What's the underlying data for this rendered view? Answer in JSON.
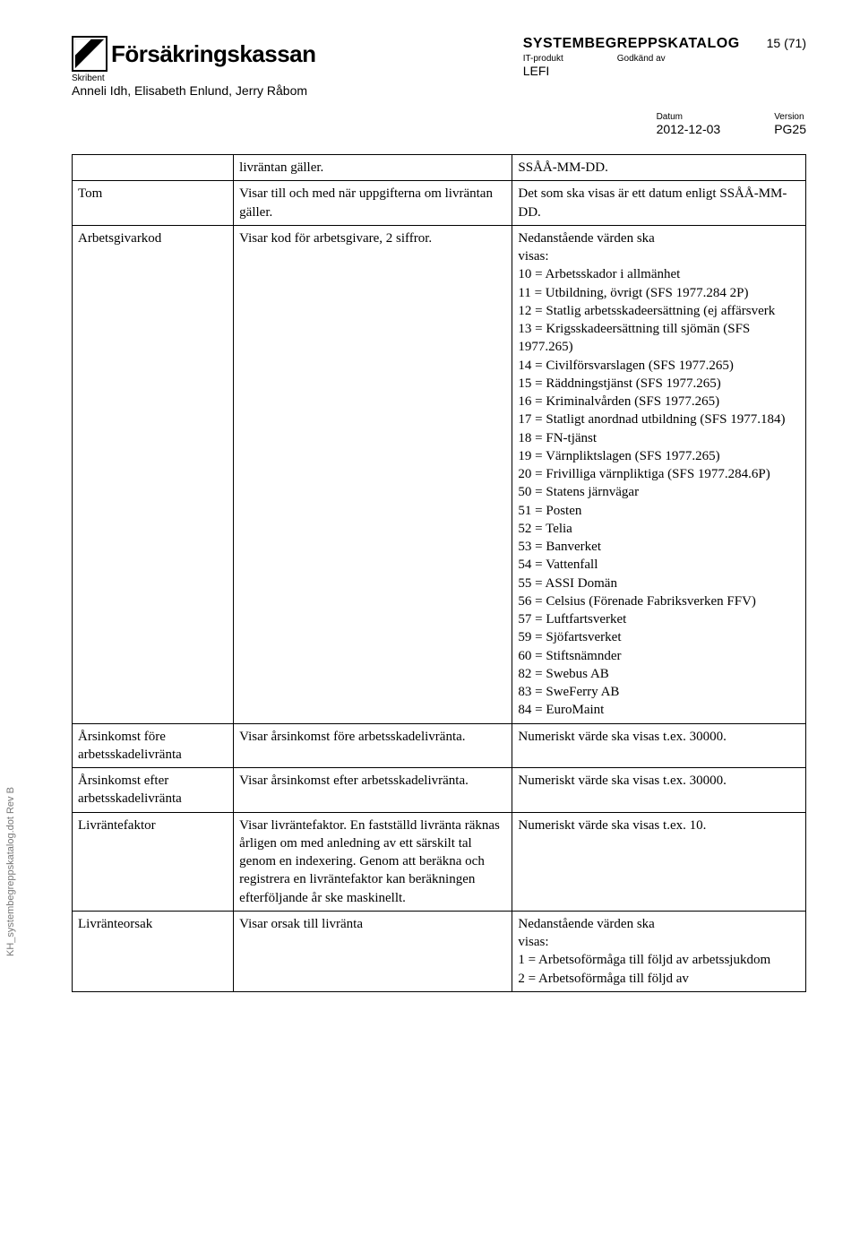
{
  "header": {
    "brand": "Försäkringskassan",
    "skribent_label": "Skribent",
    "skribent_names": "Anneli Idh, Elisabeth Enlund, Jerry Råbom",
    "doc_title": "SYSTEMBEGREPPSKATALOG",
    "it_label": "IT-produkt",
    "it_value": "LEFI",
    "approved_label": "Godkänd av",
    "page_ref": "15 (71)",
    "date_label": "Datum",
    "date_value": "2012-12-03",
    "version_label": "Version",
    "version_value": "PG25"
  },
  "side_note": "KH_systembegreppskatalog.dot  Rev B",
  "rows": [
    {
      "c1": "",
      "c2": "livräntan gäller.",
      "c3": "SSÅÅ-MM-DD."
    },
    {
      "c1": "Tom",
      "c2": "Visar till och med när uppgifterna om livräntan gäller.",
      "c3": "Det som ska visas är ett datum enligt SSÅÅ-MM-DD."
    },
    {
      "c1": "Arbetsgivarkod",
      "c2": "Visar kod för arbetsgivare, 2 siffror.",
      "c3": "Nedanstående värden ska\nvisas:\n10 = Arbetsskador i allmänhet\n11 = Utbildning, övrigt (SFS 1977.284 2P)\n12 = Statlig arbetsskadeersättning (ej affärsverk\n13 = Krigsskadeersättning till sjömän (SFS 1977.265)\n14 = Civilförsvarslagen (SFS 1977.265)\n15 = Räddningstjänst (SFS 1977.265)\n16 = Kriminalvården (SFS 1977.265)\n17 = Statligt anordnad utbildning (SFS 1977.184)\n18 = FN-tjänst\n19 = Värnpliktslagen (SFS 1977.265)\n20 = Frivilliga värnpliktiga (SFS 1977.284.6P)\n50 = Statens järnvägar\n51 = Posten\n52 = Telia\n53 = Banverket\n54 = Vattenfall\n55 = ASSI Domän\n56 = Celsius (Förenade Fabriksverken FFV)\n57 = Luftfartsverket\n59 = Sjöfartsverket\n60 = Stiftsnämnder\n82 = Swebus AB\n83 = SweFerry AB\n84 = EuroMaint"
    },
    {
      "c1": "Årsinkomst före arbetsskadelivränta",
      "c2": "Visar årsinkomst före arbetsskadelivränta.",
      "c3": "Numeriskt värde ska visas t.ex. 30000."
    },
    {
      "c1": "Årsinkomst efter arbetsskadelivränta",
      "c2": "Visar årsinkomst efter arbetsskadelivränta.",
      "c3": "Numeriskt värde ska visas t.ex. 30000."
    },
    {
      "c1": "Livräntefaktor",
      "c2": "Visar livräntefaktor. En fastställd livränta räknas årligen om med anledning av ett särskilt tal genom en indexering. Genom att beräkna och registrera en livräntefaktor kan beräkningen efterföljande år ske maskinellt.",
      "c3": "Numeriskt värde ska visas t.ex. 10."
    },
    {
      "c1": "Livränteorsak",
      "c2": "Visar orsak till livränta",
      "c3": "Nedanstående värden ska\nvisas:\n1 = Arbetsoförmåga till följd av arbetssjukdom\n2 = Arbetsoförmåga till följd av"
    }
  ]
}
